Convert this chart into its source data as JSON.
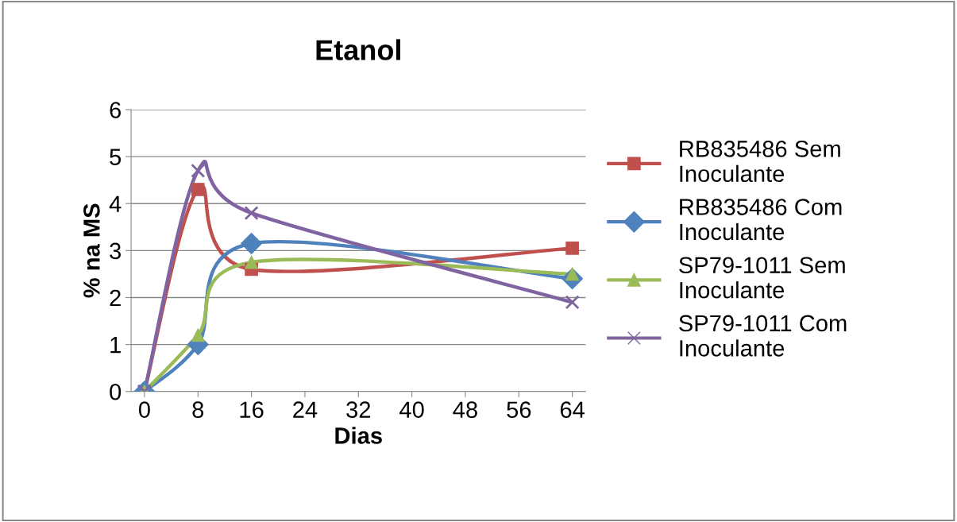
{
  "chart_data": {
    "type": "line",
    "title": "Etanol",
    "xlabel": "Dias",
    "ylabel": "% na MS",
    "x": [
      0,
      8,
      16,
      64
    ],
    "xlim": [
      -2,
      66
    ],
    "xticks": [
      0,
      8,
      16,
      24,
      32,
      40,
      48,
      56,
      64
    ],
    "ylim": [
      0,
      6
    ],
    "yticks": [
      0,
      1,
      2,
      3,
      4,
      5,
      6
    ],
    "grid": "y",
    "legend": "right",
    "series": [
      {
        "name": "RB835486 Sem Inoculante",
        "color": "#c0504d",
        "marker": "square",
        "values": [
          0,
          4.3,
          2.6,
          3.05
        ]
      },
      {
        "name": "RB835486 Com Inoculante",
        "color": "#4f81bd",
        "marker": "diamond",
        "values": [
          0,
          1.0,
          3.15,
          2.4
        ]
      },
      {
        "name": "SP79-1011 Sem Inoculante",
        "color": "#9bbb59",
        "marker": "triangle",
        "values": [
          0,
          1.2,
          2.75,
          2.5
        ]
      },
      {
        "name": "SP79-1011 Com Inoculante",
        "color": "#8064a2",
        "marker": "cross",
        "values": [
          0,
          4.7,
          3.8,
          1.9
        ]
      }
    ]
  }
}
